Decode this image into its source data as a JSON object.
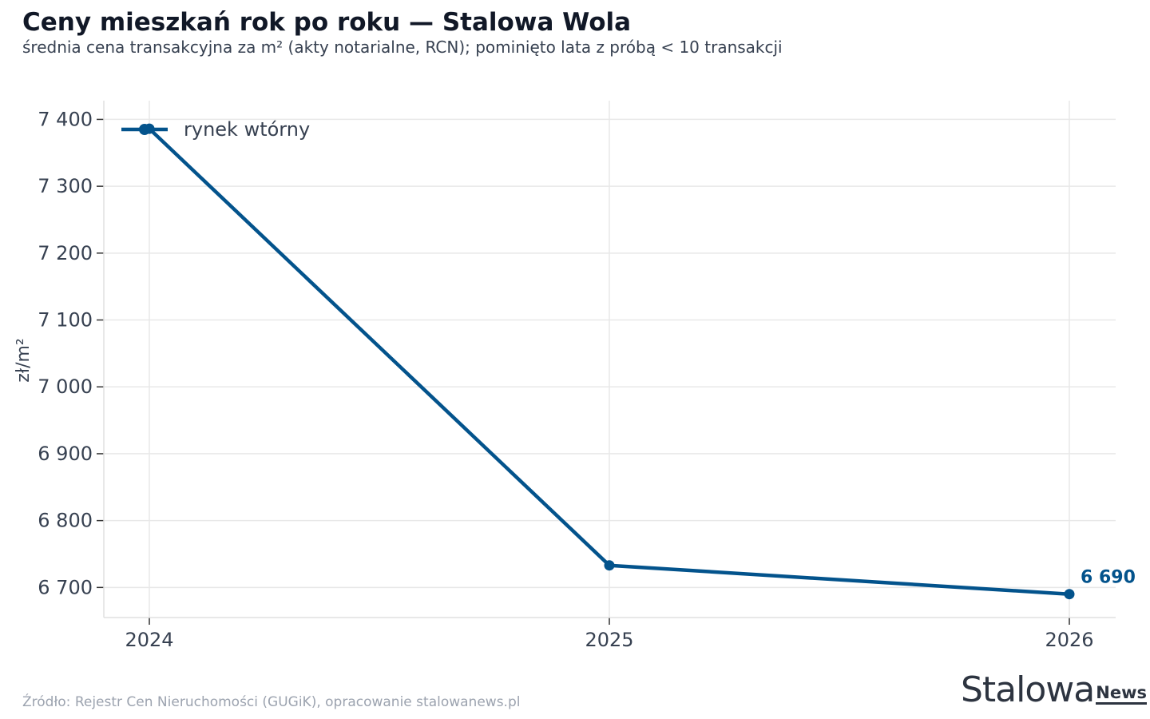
{
  "header": {
    "title": "Ceny mieszkań rok po roku — Stalowa Wola",
    "subtitle": "średnia cena transakcyjna za m² (akty notarialne, RCN); pominięto lata z próbą < 10 transakcji"
  },
  "footer": {
    "source": "Źródło: Rejestr Cen Nieruchomości (GUGiK), opracowanie stalowanews.pl",
    "logo_main": "Stalowa",
    "logo_sub": "News"
  },
  "chart_data": {
    "type": "line",
    "title": "Ceny mieszkań rok po roku — Stalowa Wola",
    "subtitle": "średnia cena transakcyjna za m² (akty notarialne, RCN); pominięto lata z próbą < 10 transakcji",
    "xlabel": "",
    "ylabel": "zł/m²",
    "x": [
      "2024",
      "2025",
      "2026"
    ],
    "series": [
      {
        "name": "rynek wtórny",
        "values": [
          7386,
          6733,
          6690
        ],
        "color": "#03538c"
      }
    ],
    "last_value_label": "6 690",
    "ylim": [
      6655,
      7428
    ],
    "yticks": [
      6700,
      6800,
      6900,
      7000,
      7100,
      7200,
      7300,
      7400
    ],
    "ytick_labels": [
      "6 700",
      "6 800",
      "6 900",
      "7 000",
      "7 100",
      "7 200",
      "7 300",
      "7 400"
    ],
    "grid": true,
    "legend": "top-left"
  }
}
